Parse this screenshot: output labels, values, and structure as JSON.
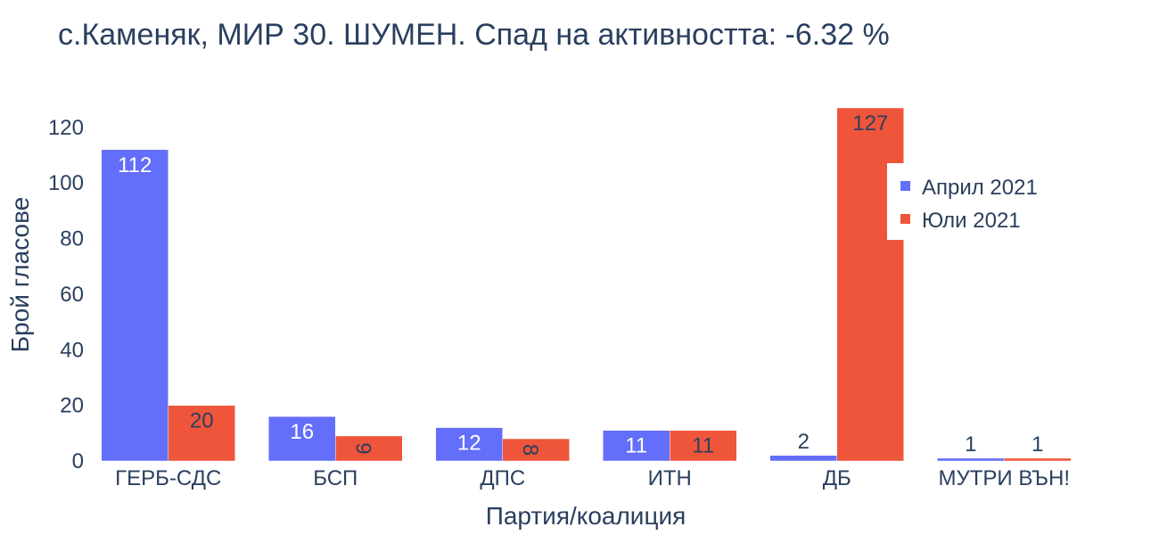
{
  "chart_data": {
    "type": "bar",
    "title": "с.Каменяк, МИР 30. ШУМЕН. Спад на активността: -6.32 %",
    "xlabel": "Партия/коалиция",
    "ylabel": "Брой гласове",
    "categories": [
      "ГЕРБ-СДС",
      "БСП",
      "ДПС",
      "ИТН",
      "ДБ",
      "МУТРИ ВЪН!"
    ],
    "series": [
      {
        "name": "Април 2021",
        "color": "#636efa",
        "values": [
          112,
          16,
          12,
          11,
          2,
          1
        ]
      },
      {
        "name": "Юли 2021",
        "color": "#ef553b",
        "values": [
          20,
          9,
          8,
          11,
          127,
          1
        ]
      }
    ],
    "ylim": [
      0,
      127
    ],
    "yticks": [
      0,
      20,
      40,
      60,
      80,
      100,
      120
    ],
    "grid": false,
    "legend_position": "top-right"
  }
}
